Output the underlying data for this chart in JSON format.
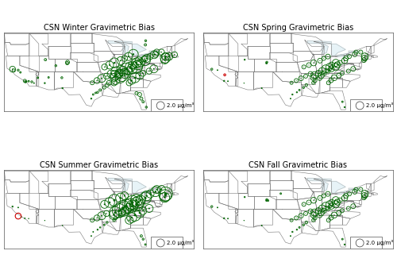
{
  "titles": [
    "CSN Winter Gravimetric Bias",
    "CSN Spring Gravimetric Bias",
    "CSN Summer Gravimetric Bias",
    "CSN Fall Gravimetric Bias"
  ],
  "green_color": "#006400",
  "red_color": "#cc0000",
  "scale_ref": 2.0,
  "title_fontsize": 7.0,
  "figsize": [
    5.0,
    3.4
  ],
  "dpi": 100,
  "us_xlim": [
    -125.0,
    -65.0
  ],
  "us_ylim": [
    24.5,
    49.5
  ],
  "legend_circle_size": 80,
  "stations": {
    "winter": {
      "lons": [
        -122.3,
        -121.9,
        -120.5,
        -119.8,
        -118.4,
        -118.2,
        -117.9,
        -117.2,
        -116.2,
        -115.5,
        -114.3,
        -112.1,
        -111.9,
        -110.9,
        -108.6,
        -106.7,
        -106.5,
        -105.0,
        -104.9,
        -97.4,
        -96.8,
        -96.0,
        -95.4,
        -94.6,
        -93.3,
        -92.4,
        -91.8,
        -90.2,
        -89.7,
        -88.2,
        -87.7,
        -86.8,
        -85.5,
        -84.5,
        -83.1,
        -82.6,
        -81.8,
        -80.3,
        -80.0,
        -79.9,
        -78.8,
        -77.5,
        -77.1,
        -76.7,
        -75.2,
        -74.2,
        -74.0,
        -73.9,
        -72.9,
        -71.1,
        -85.4,
        -84.6,
        -83.6,
        -82.1,
        -81.1,
        -79.1,
        -77.6,
        -90.2,
        -89.8,
        -88.6,
        -87.4,
        -86.3,
        -85.1,
        -84.4,
        -83.1,
        -82.3,
        -80.6,
        -93.2,
        -91.6,
        -90.1,
        -88.1,
        -86.9,
        -85.6,
        -84.1,
        -97.1,
        -95.6,
        -94.1,
        -92.6,
        -91.1,
        -89.6,
        -88.1,
        -81.0,
        -81.6,
        -82.1,
        -83.1,
        -80.3,
        -80.2
      ],
      "lats": [
        37.8,
        37.4,
        37.5,
        36.8,
        34.1,
        33.8,
        33.9,
        34.0,
        33.8,
        33.4,
        35.1,
        33.4,
        40.8,
        35.2,
        38.9,
        35.1,
        31.8,
        39.7,
        40.0,
        28.5,
        29.8,
        30.3,
        30.5,
        31.2,
        32.0,
        32.8,
        33.5,
        33.5,
        34.2,
        35.0,
        35.8,
        36.5,
        37.2,
        37.9,
        38.5,
        39.2,
        39.8,
        40.5,
        25.8,
        41.2,
        41.8,
        42.4,
        42.5,
        43.2,
        43.2,
        40.7,
        41.3,
        41.8,
        41.8,
        42.4,
        33.5,
        34.3,
        35.1,
        35.8,
        36.5,
        37.2,
        37.9,
        35.2,
        35.9,
        36.5,
        37.2,
        37.9,
        38.5,
        39.1,
        39.8,
        40.4,
        41.0,
        38.5,
        39.1,
        39.8,
        40.5,
        41.2,
        41.8,
        42.5,
        33.5,
        34.2,
        34.9,
        35.6,
        36.3,
        37.0,
        37.7,
        27.5,
        28.5,
        29.8,
        30.2,
        45.5,
        46.8
      ],
      "values": [
        1.5,
        0.8,
        0.5,
        0.4,
        0.8,
        0.5,
        0.3,
        0.4,
        0.5,
        0.2,
        0.4,
        0.3,
        0.6,
        0.4,
        0.5,
        0.5,
        0.3,
        0.8,
        1.0,
        0.3,
        0.4,
        0.4,
        0.5,
        0.6,
        0.8,
        1.0,
        1.2,
        1.5,
        2.0,
        2.5,
        3.0,
        2.5,
        2.0,
        2.5,
        3.0,
        2.5,
        2.0,
        2.5,
        0.5,
        2.0,
        1.5,
        2.0,
        1.5,
        1.5,
        1.5,
        2.0,
        2.5,
        2.0,
        2.0,
        1.5,
        1.5,
        2.0,
        2.5,
        2.0,
        1.5,
        1.5,
        2.0,
        2.0,
        2.5,
        2.0,
        2.5,
        3.0,
        2.5,
        2.0,
        2.5,
        2.0,
        1.5,
        1.5,
        2.0,
        2.5,
        2.0,
        1.5,
        2.0,
        2.5,
        1.0,
        1.5,
        2.0,
        1.5,
        2.0,
        2.5,
        2.0,
        0.6,
        0.8,
        1.0,
        0.8,
        0.6,
        0.5
      ],
      "negative": []
    },
    "spring": {
      "lons": [
        -122.3,
        -118.4,
        -117.2,
        -120.5,
        -112.1,
        -111.9,
        -106.5,
        -105.0,
        -104.9,
        -97.4,
        -96.8,
        -95.4,
        -94.6,
        -93.3,
        -92.4,
        -90.2,
        -89.7,
        -88.2,
        -87.7,
        -86.8,
        -85.5,
        -84.5,
        -83.1,
        -82.6,
        -81.8,
        -80.3,
        -79.9,
        -78.8,
        -77.1,
        -76.7,
        -75.2,
        -74.2,
        -74.0,
        -73.9,
        -85.4,
        -84.6,
        -83.6,
        -82.1,
        -81.1,
        -79.1,
        -77.6,
        -90.2,
        -89.8,
        -88.6,
        -87.4,
        -86.3,
        -85.1,
        -84.4,
        -83.1,
        -93.2,
        -91.6,
        -90.1,
        -88.1,
        -86.9,
        -85.6,
        -97.1,
        -95.6,
        -94.1,
        -92.6,
        -91.1,
        -80.3,
        -81.0
      ],
      "lats": [
        37.8,
        34.1,
        34.0,
        37.5,
        33.4,
        40.8,
        31.8,
        39.7,
        40.0,
        28.5,
        29.8,
        30.5,
        31.2,
        32.0,
        32.8,
        33.5,
        34.2,
        35.0,
        35.8,
        36.5,
        37.2,
        37.9,
        38.5,
        39.2,
        39.8,
        40.5,
        41.2,
        41.8,
        42.5,
        43.2,
        43.2,
        40.7,
        41.3,
        41.8,
        33.5,
        34.3,
        35.1,
        35.8,
        36.5,
        37.2,
        37.9,
        35.2,
        35.9,
        36.5,
        37.2,
        37.9,
        38.5,
        39.1,
        39.8,
        38.5,
        39.1,
        39.8,
        40.5,
        41.2,
        41.8,
        33.5,
        34.2,
        34.9,
        35.6,
        36.3,
        25.8,
        27.5
      ],
      "values": [
        0.5,
        0.3,
        0.2,
        0.2,
        0.1,
        0.3,
        0.2,
        0.4,
        0.5,
        0.2,
        0.3,
        0.3,
        0.4,
        0.5,
        0.7,
        0.8,
        1.0,
        1.2,
        1.5,
        1.2,
        1.0,
        1.5,
        1.8,
        1.5,
        1.2,
        1.5,
        1.2,
        1.0,
        1.2,
        1.0,
        1.0,
        1.2,
        1.5,
        1.8,
        1.0,
        1.2,
        1.5,
        1.2,
        1.0,
        1.0,
        1.2,
        1.5,
        1.8,
        1.5,
        1.8,
        2.0,
        1.8,
        1.5,
        1.8,
        1.0,
        1.2,
        1.5,
        1.2,
        1.0,
        1.2,
        0.8,
        1.0,
        1.2,
        1.0,
        1.2,
        0.3,
        0.4
      ],
      "negative": [
        [
          -118.2,
          36.0,
          0.5
        ]
      ]
    },
    "summer": {
      "lons": [
        -122.3,
        -118.4,
        -117.2,
        -120.5,
        -112.1,
        -106.5,
        -97.4,
        -96.8,
        -95.4,
        -94.6,
        -93.3,
        -92.4,
        -90.2,
        -89.7,
        -88.2,
        -87.7,
        -86.8,
        -85.5,
        -84.5,
        -83.1,
        -82.6,
        -81.8,
        -80.3,
        -79.9,
        -78.8,
        -77.1,
        -76.7,
        -75.2,
        -74.2,
        -74.0,
        -73.9,
        -85.4,
        -84.6,
        -83.6,
        -82.1,
        -81.1,
        -79.1,
        -90.2,
        -89.8,
        -88.6,
        -87.4,
        -86.3,
        -85.1,
        -84.4,
        -83.1,
        -93.2,
        -91.6,
        -90.1,
        -88.1,
        -86.9,
        -97.1,
        -95.6,
        -94.1,
        -92.6,
        -80.3,
        -81.0,
        -81.6,
        -119.5
      ],
      "lats": [
        37.8,
        34.1,
        34.0,
        37.5,
        33.4,
        31.8,
        28.5,
        29.8,
        30.5,
        31.2,
        32.0,
        32.8,
        33.5,
        34.2,
        35.0,
        35.8,
        36.5,
        37.2,
        37.9,
        38.5,
        39.2,
        39.8,
        40.5,
        41.2,
        41.8,
        42.5,
        43.2,
        43.2,
        40.7,
        41.3,
        41.8,
        33.5,
        34.3,
        35.1,
        35.8,
        36.5,
        37.2,
        35.2,
        35.9,
        36.5,
        37.2,
        37.9,
        38.5,
        39.1,
        39.8,
        38.5,
        39.1,
        39.8,
        40.5,
        41.2,
        33.5,
        34.2,
        34.9,
        35.6,
        25.8,
        27.5,
        28.5,
        34.5
      ],
      "values": [
        0.3,
        0.2,
        0.1,
        0.2,
        0.1,
        0.1,
        0.2,
        0.2,
        0.3,
        0.3,
        0.4,
        0.5,
        0.7,
        0.8,
        1.0,
        1.5,
        2.0,
        2.5,
        3.0,
        3.5,
        3.0,
        2.5,
        3.0,
        2.5,
        2.0,
        2.5,
        2.0,
        2.0,
        2.5,
        3.0,
        3.5,
        2.0,
        2.5,
        3.0,
        2.5,
        2.0,
        2.0,
        2.5,
        3.0,
        3.5,
        4.0,
        3.5,
        3.0,
        3.5,
        3.0,
        2.0,
        2.5,
        3.0,
        2.5,
        2.0,
        1.0,
        1.5,
        2.0,
        1.5,
        0.4,
        0.5,
        0.6,
        0.1
      ],
      "negative": [
        [
          -120.5,
          34.8,
          1.5
        ]
      ]
    },
    "fall": {
      "lons": [
        -122.3,
        -118.4,
        -117.2,
        -120.5,
        -112.1,
        -111.9,
        -106.5,
        -105.0,
        -104.9,
        -97.4,
        -96.8,
        -95.4,
        -94.6,
        -93.3,
        -92.4,
        -90.2,
        -89.7,
        -88.2,
        -87.7,
        -86.8,
        -85.5,
        -84.5,
        -83.1,
        -82.6,
        -81.8,
        -80.3,
        -79.9,
        -78.8,
        -77.1,
        -76.7,
        -75.2,
        -74.2,
        -74.0,
        -73.9,
        -85.4,
        -84.6,
        -83.6,
        -82.1,
        -81.1,
        -79.1,
        -77.6,
        -90.2,
        -89.8,
        -88.6,
        -87.4,
        -86.3,
        -85.1,
        -84.4,
        -83.1,
        -93.2,
        -91.6,
        -90.1,
        -88.1,
        -86.9,
        -85.6,
        -97.1,
        -95.6,
        -94.1,
        -92.6,
        -91.1,
        -80.3,
        -81.0,
        -104.5,
        -100.5
      ],
      "lats": [
        37.8,
        34.1,
        34.0,
        37.5,
        33.4,
        40.8,
        31.8,
        39.7,
        40.0,
        28.5,
        29.8,
        30.5,
        31.2,
        32.0,
        32.8,
        33.5,
        34.2,
        35.0,
        35.8,
        36.5,
        37.2,
        37.9,
        38.5,
        39.2,
        39.8,
        40.5,
        41.2,
        41.8,
        42.5,
        43.2,
        43.2,
        40.7,
        41.3,
        41.8,
        33.5,
        34.3,
        35.1,
        35.8,
        36.5,
        37.2,
        37.9,
        35.2,
        35.9,
        36.5,
        37.2,
        37.9,
        38.5,
        39.1,
        39.8,
        38.5,
        39.1,
        39.8,
        40.5,
        41.2,
        41.8,
        33.5,
        34.2,
        34.9,
        35.6,
        36.3,
        25.8,
        27.5,
        39.7,
        41.9
      ],
      "values": [
        0.5,
        0.3,
        0.2,
        0.2,
        0.1,
        0.3,
        0.2,
        0.4,
        0.5,
        0.2,
        0.3,
        0.3,
        0.4,
        0.5,
        0.7,
        0.8,
        1.0,
        1.2,
        1.5,
        1.2,
        1.0,
        1.5,
        1.8,
        1.5,
        1.2,
        1.5,
        1.2,
        1.0,
        1.2,
        1.0,
        1.0,
        1.2,
        1.5,
        1.8,
        1.0,
        1.2,
        1.5,
        1.2,
        1.0,
        1.0,
        1.2,
        1.5,
        1.8,
        1.5,
        1.8,
        2.0,
        1.8,
        1.5,
        1.8,
        1.0,
        1.2,
        1.5,
        1.2,
        1.0,
        1.2,
        0.8,
        1.0,
        1.2,
        1.0,
        1.2,
        0.3,
        0.4,
        0.4,
        0.4
      ],
      "negative": []
    }
  }
}
